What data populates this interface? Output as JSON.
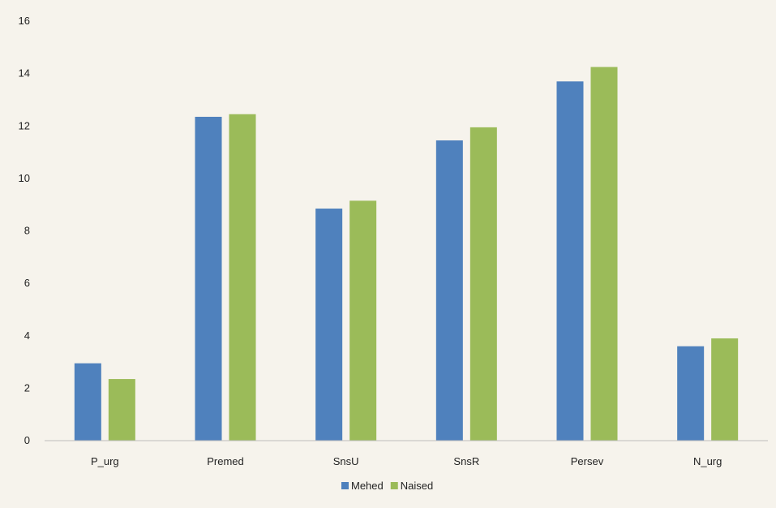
{
  "chart_data": {
    "type": "bar",
    "categories": [
      "P_urg",
      "Premed",
      "SnsU",
      "SnsR",
      "Persev",
      "N_urg"
    ],
    "series": [
      {
        "name": "Mehed",
        "color": "#4f81bd",
        "values": [
          2.95,
          12.35,
          8.85,
          11.45,
          13.7,
          3.6
        ]
      },
      {
        "name": "Naised",
        "color": "#9bbb59",
        "values": [
          2.35,
          12.45,
          9.15,
          11.95,
          14.25,
          3.9
        ]
      }
    ],
    "ylim": [
      0,
      16
    ],
    "yticks": [
      0,
      2,
      4,
      6,
      8,
      10,
      12,
      14,
      16
    ],
    "grid": false,
    "legend_position": "bottom",
    "title": "",
    "xlabel": "",
    "ylabel": ""
  }
}
